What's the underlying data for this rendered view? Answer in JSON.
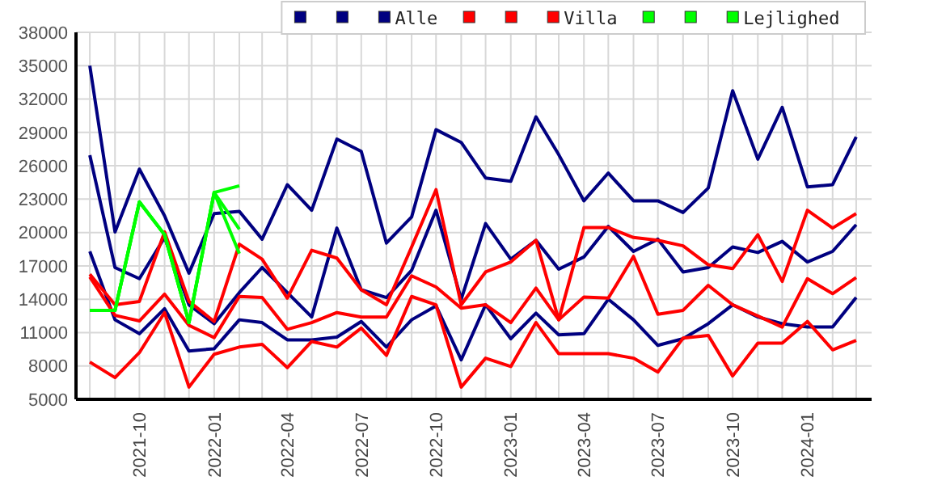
{
  "chart_data": {
    "type": "line",
    "x": [
      "2021-08",
      "2021-09",
      "2021-10",
      "2021-11",
      "2021-12",
      "2022-01",
      "2022-02",
      "2022-03",
      "2022-04",
      "2022-05",
      "2022-06",
      "2022-07",
      "2022-08",
      "2022-09",
      "2022-10",
      "2022-11",
      "2022-12",
      "2023-01",
      "2023-02",
      "2023-03",
      "2023-04",
      "2023-05",
      "2023-06",
      "2023-07",
      "2023-08",
      "2023-09",
      "2023-10",
      "2023-11",
      "2023-12",
      "2024-01",
      "2024-02",
      "2024-03"
    ],
    "series": [
      {
        "color": "#000080",
        "values": [
          35000,
          20050,
          25700,
          21500,
          16350,
          21700,
          21900,
          19400,
          24300,
          22000,
          28400,
          27300,
          19050,
          21400,
          29250,
          28100,
          24900,
          24600,
          30400,
          27000,
          22850,
          25350,
          22850,
          22850,
          21800,
          24000,
          32750,
          26600,
          31250,
          24100,
          24300,
          28600
        ]
      },
      {
        "color": "#000080",
        "values": [
          26950,
          16850,
          15850,
          19550,
          13500,
          11800,
          14600,
          16850,
          14600,
          12400,
          20400,
          14850,
          14150,
          16600,
          22000,
          14000,
          20800,
          17600,
          19300,
          16700,
          17800,
          20550,
          18300,
          19400,
          16450,
          16850,
          18700,
          18200,
          19200,
          17350,
          18300,
          20700
        ]
      },
      {
        "name": "Alle",
        "color": "#000080",
        "values": [
          18300,
          12150,
          10900,
          13150,
          9350,
          9550,
          12150,
          11900,
          10350,
          10350,
          10600,
          12000,
          9700,
          12150,
          13400,
          8550,
          13500,
          10450,
          12750,
          10800,
          10900,
          14000,
          12150,
          9850,
          10450,
          11800,
          13500,
          12400,
          11800,
          11500,
          11500,
          14150
        ]
      },
      {
        "color": "#ff0000",
        "values": [
          16250,
          13500,
          13800,
          20050,
          13800,
          12000,
          18950,
          17600,
          14100,
          18400,
          17700,
          14850,
          13500,
          18700,
          23850,
          13500,
          16450,
          17350,
          19300,
          12150,
          20450,
          20450,
          19550,
          19300,
          18800,
          17100,
          16750,
          19800,
          15600,
          22000,
          20400,
          21700
        ]
      },
      {
        "color": "#ff0000",
        "values": [
          16000,
          12550,
          12050,
          14450,
          11650,
          10550,
          14250,
          14150,
          11300,
          11900,
          12800,
          12400,
          12400,
          16100,
          15100,
          13200,
          13500,
          11900,
          15000,
          12150,
          14200,
          14100,
          17850,
          12650,
          13000,
          15250,
          13500,
          12500,
          11500,
          15850,
          14500,
          15950
        ]
      },
      {
        "name": "Villa",
        "color": "#ff0000",
        "values": [
          8350,
          6950,
          9200,
          12800,
          6100,
          9050,
          9700,
          9950,
          7850,
          10200,
          9700,
          11400,
          8950,
          14250,
          13500,
          6100,
          8700,
          7950,
          11900,
          9100,
          9100,
          9100,
          8700,
          7450,
          10500,
          10750,
          7100,
          10050,
          10050,
          12000,
          9450,
          10300
        ]
      },
      {
        "color": "#00ff00",
        "values": [
          13000,
          13000,
          22750,
          19800,
          11900,
          23600,
          24200,
          null,
          null,
          null,
          null,
          null,
          null,
          null,
          null,
          null,
          null,
          null,
          null,
          null,
          null,
          null,
          null,
          null,
          null,
          null,
          null,
          null,
          null,
          null,
          null,
          null
        ]
      },
      {
        "color": "#00ff00",
        "values": [
          13000,
          13000,
          22750,
          19800,
          11900,
          23600,
          20300,
          null,
          null,
          null,
          null,
          null,
          null,
          null,
          null,
          null,
          null,
          null,
          null,
          null,
          null,
          null,
          null,
          null,
          null,
          null,
          null,
          null,
          null,
          null,
          null,
          null
        ]
      },
      {
        "name": "Lejlighed",
        "color": "#00ff00",
        "values": [
          13000,
          13000,
          22750,
          19800,
          11900,
          23600,
          18100,
          null,
          null,
          null,
          null,
          null,
          null,
          null,
          null,
          null,
          null,
          null,
          null,
          null,
          null,
          null,
          null,
          null,
          null,
          null,
          null,
          null,
          null,
          null,
          null,
          null
        ]
      }
    ],
    "xlim": [
      "2021-07-15",
      "2024-03-20"
    ],
    "xticks": [
      {
        "value": "2021-08",
        "label": null
      },
      {
        "value": "2021-09",
        "label": null
      },
      "2021-10",
      {
        "value": "2021-11",
        "label": null
      },
      {
        "value": "2021-12",
        "label": null
      },
      "2022-01",
      {
        "value": "2022-02",
        "label": null
      },
      {
        "value": "2022-03",
        "label": null
      },
      "2022-04",
      {
        "value": "2022-05",
        "label": null
      },
      {
        "value": "2022-06",
        "label": null
      },
      "2022-07",
      {
        "value": "2022-08",
        "label": null
      },
      {
        "value": "2022-09",
        "label": null
      },
      "2022-10",
      {
        "value": "2022-11",
        "label": null
      },
      {
        "value": "2022-12",
        "label": null
      },
      "2023-01",
      {
        "value": "2023-02",
        "label": null
      },
      {
        "value": "2023-03",
        "label": null
      },
      "2023-04",
      {
        "value": "2023-05",
        "label": null
      },
      {
        "value": "2023-06",
        "label": null
      },
      "2023-07",
      {
        "value": "2023-08",
        "label": null
      },
      {
        "value": "2023-09",
        "label": null
      },
      "2023-10",
      {
        "value": "2023-11",
        "label": null
      },
      {
        "value": "2023-12",
        "label": null
      },
      "2024-01",
      {
        "value": "2024-02",
        "label": null
      },
      {
        "value": "2024-03",
        "label": null
      }
    ],
    "ylim": [
      5000,
      38000
    ],
    "yticks": [
      5000,
      8000,
      11000,
      14000,
      17000,
      20000,
      23000,
      26000,
      29000,
      32000,
      35000,
      38000
    ],
    "grid": true,
    "legend": "top right",
    "marker": "none",
    "line_style": "solid"
  }
}
